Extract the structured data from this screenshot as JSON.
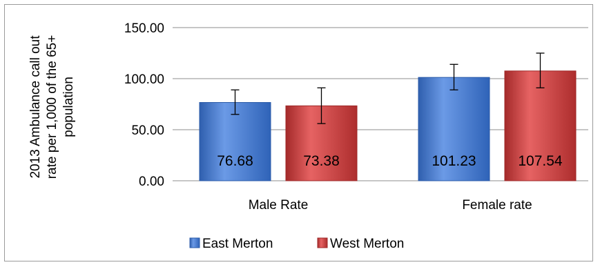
{
  "chart_data": {
    "type": "bar",
    "categories": [
      "Male Rate",
      "Female rate"
    ],
    "series": [
      {
        "name": "East Merton",
        "values": [
          76.68,
          101.23
        ],
        "error_low": [
          65,
          89
        ],
        "error_high": [
          89,
          114
        ],
        "data_labels": [
          "76.68",
          "101.23"
        ]
      },
      {
        "name": "West Merton",
        "values": [
          73.38,
          107.54
        ],
        "error_low": [
          56,
          91
        ],
        "error_high": [
          91,
          125
        ],
        "data_labels": [
          "73.38",
          "107.54"
        ]
      }
    ],
    "ylabel_lines": [
      "2013 Ambulance call out",
      "rate per 1,000 of the 65+",
      "population"
    ],
    "ylim": [
      0,
      150
    ],
    "yticks": [
      "0.00",
      "50.00",
      "100.00",
      "150.00"
    ],
    "grid": true,
    "legend_position": "bottom",
    "colors": {
      "East Merton": "#4a7fd1",
      "West Merton": "#cf3f3f"
    }
  }
}
